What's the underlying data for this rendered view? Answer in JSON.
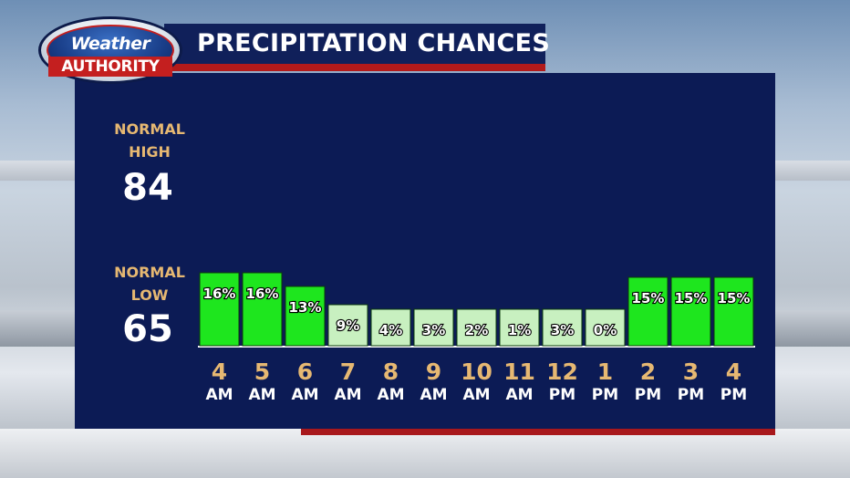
{
  "header": {
    "logo_top": "Weather",
    "logo_bottom": "AUTHORITY",
    "title": "PRECIPITATION CHANCES"
  },
  "normals": {
    "high_label_1": "NORMAL",
    "high_label_2": "HIGH",
    "high_value": "84",
    "low_label_1": "NORMAL",
    "low_label_2": "LOW",
    "low_value": "65"
  },
  "colors": {
    "panel": "#0c1b55",
    "high_bar": "#1ee61e",
    "low_bar": "#c8f0c0",
    "label_accent": "#e6b872"
  },
  "chart_data": {
    "type": "bar",
    "title": "PRECIPITATION CHANCES",
    "hours": [
      "4",
      "5",
      "6",
      "7",
      "8",
      "9",
      "10",
      "11",
      "12",
      "1",
      "2",
      "3",
      "4"
    ],
    "periods": [
      "AM",
      "AM",
      "AM",
      "AM",
      "AM",
      "AM",
      "AM",
      "AM",
      "PM",
      "PM",
      "PM",
      "PM",
      "PM"
    ],
    "values": [
      16,
      16,
      13,
      9,
      4,
      3,
      2,
      1,
      3,
      0,
      15,
      15,
      15
    ],
    "value_labels": [
      "16%",
      "16%",
      "13%",
      "9%",
      "4%",
      "3%",
      "2%",
      "1%",
      "3%",
      "0%",
      "15%",
      "15%",
      "15%"
    ],
    "highlight": [
      true,
      true,
      true,
      false,
      false,
      false,
      false,
      false,
      false,
      false,
      true,
      true,
      true
    ],
    "unit": "%"
  }
}
